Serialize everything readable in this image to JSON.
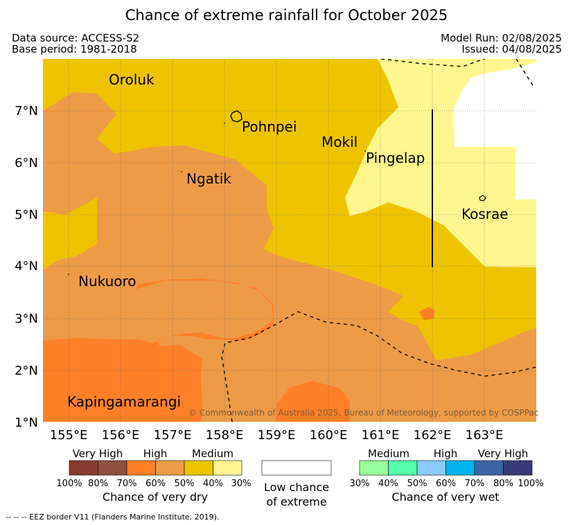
{
  "title": "Chance of extreme rainfall for October 2025",
  "header": {
    "data_source": "Data source: ACCESS-S2",
    "base_period": "Base period: 1981-2018",
    "model_run": "Model Run: 02/08/2025",
    "issued": "Issued: 04/08/2025"
  },
  "map": {
    "places": {
      "oroluk": "Oroluk",
      "pohnpei": "Pohnpei",
      "mokil": "Mokil",
      "pingelap": "Pingelap",
      "ngatik": "Ngatik",
      "kosrae": "Kosrae",
      "nukuoro": "Nukuoro",
      "kapingamarangi": "Kapingamarangi"
    },
    "lat_ticks": [
      "7°N",
      "6°N",
      "5°N",
      "4°N",
      "3°N",
      "2°N",
      "1°N"
    ],
    "lon_ticks": [
      "155°E",
      "156°E",
      "157°E",
      "158°E",
      "159°E",
      "160°E",
      "161°E",
      "162°E",
      "163°E"
    ],
    "copyright": "© Commonwealth of Australia 2025, Bureau of Meteorology, supported by COSPPac",
    "colors": {
      "dry_80_100": "#8b3a2e",
      "dry_70_80": "#8f5040",
      "dry_60_70": "#ff7f27",
      "dry_50_60": "#ee9b48",
      "dry_40_50": "#eec400",
      "dry_30_40": "#fff68f",
      "low_chance": "#ffffff",
      "wet_30_40": "#99ff99",
      "wet_40_50": "#55ffaa",
      "wet_50_60": "#88ccff",
      "wet_60_70": "#00b4f0",
      "wet_70_80": "#3a66a8",
      "wet_80_100": "#3a3a78"
    }
  },
  "legend": {
    "dry": {
      "categories": [
        "Very High",
        "High",
        "Medium"
      ],
      "ticks": [
        "100%",
        "80%",
        "70%",
        "60%",
        "50%",
        "40%",
        "30%"
      ],
      "caption": "Chance of very dry"
    },
    "low": {
      "caption_line1": "Low chance",
      "caption_line2": "of extreme"
    },
    "wet": {
      "categories": [
        "Medium",
        "High",
        "Very High"
      ],
      "ticks": [
        "30%",
        "40%",
        "50%",
        "60%",
        "70%",
        "80%",
        "100%"
      ],
      "caption": "Chance of very wet"
    }
  },
  "footnote": "--  --  -- EEZ border V11 (Flanders Marine Institute, 2019)."
}
